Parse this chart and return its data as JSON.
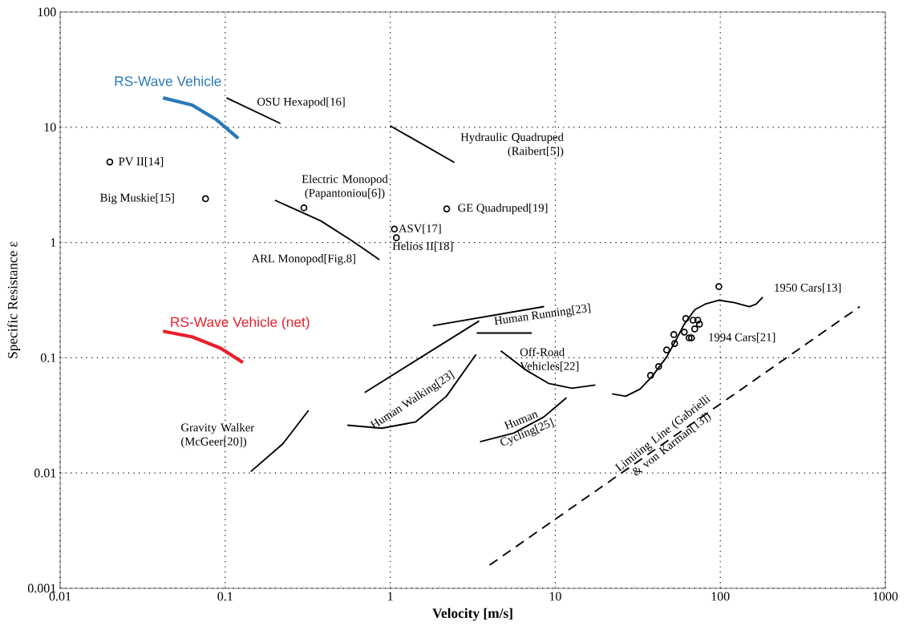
{
  "chart_data": {
    "type": "line",
    "xlabel": "Velocity [m/s]",
    "ylabel": "Specific Resistance ε",
    "log": "xy",
    "grid": true,
    "xlim": [
      0.01,
      1000
    ],
    "ylim": [
      0.001,
      100
    ],
    "xticks": [
      0.01,
      0.1,
      1,
      10,
      100,
      1000
    ],
    "yticks": [
      0.001,
      0.01,
      0.1,
      1,
      10,
      100
    ],
    "series": [
      {
        "name": "RS-Wave Vehicle",
        "color": "#2a7ab9",
        "marker": "none",
        "x": [
          0.042,
          0.063,
          0.088,
          0.12
        ],
        "values": [
          18,
          15.6,
          11.7,
          8.0
        ]
      },
      {
        "name": "RS-Wave Vehicle (net)",
        "color": "#e8202a",
        "marker": "none",
        "x": [
          0.042,
          0.063,
          0.094,
          0.128
        ],
        "values": [
          0.17,
          0.152,
          0.121,
          0.091
        ]
      },
      {
        "name": "OSU Hexapod[16]",
        "color": "#000000",
        "marker": "none",
        "x": [
          0.102,
          0.216
        ],
        "values": [
          18,
          10.8
        ]
      },
      {
        "name": "Hydraulic Quadruped (Raibert[5])",
        "color": "#000000",
        "marker": "none",
        "x": [
          1,
          2.45
        ],
        "values": [
          10.3,
          4.95
        ]
      },
      {
        "name": "ARL Monopod[Fig.8]",
        "color": "#000000",
        "marker": "none",
        "x": [
          0.2,
          0.38,
          0.59,
          0.86
        ],
        "values": [
          2.33,
          1.54,
          1.03,
          0.71
        ]
      },
      {
        "name": "Gravity Walker (McGeer[20])",
        "color": "#000000",
        "marker": "none",
        "x": [
          0.143,
          0.224,
          0.32
        ],
        "values": [
          0.0103,
          0.018,
          0.035
        ]
      },
      {
        "name": "Human Walking[23]",
        "color": "#000000",
        "marker": "none",
        "x": [
          0.7,
          3.46
        ],
        "values": [
          0.05,
          0.209
        ]
      },
      {
        "color": "#000000",
        "marker": "none",
        "x": [
          0.55,
          0.89,
          1.43,
          2.19,
          3.31
        ],
        "values": [
          0.026,
          0.0245,
          0.0278,
          0.0464,
          0.107
        ]
      },
      {
        "name": "Human Running[23]",
        "color": "#000000",
        "marker": "none",
        "x": [
          1.81,
          8.55
        ],
        "values": [
          0.19,
          0.278
        ]
      },
      {
        "color": "#000000",
        "marker": "none",
        "x": [
          3.34,
          7.2
        ],
        "values": [
          0.164,
          0.164
        ]
      },
      {
        "name": "Off-Road Vehicles[22]",
        "color": "#000000",
        "marker": "none",
        "x": [
          4.68,
          6.6,
          9.1,
          12.6,
          17.5
        ],
        "values": [
          0.115,
          0.0787,
          0.06,
          0.0545,
          0.058
        ]
      },
      {
        "name": "Human Cycling[25]",
        "color": "#000000",
        "marker": "none",
        "x": [
          3.5,
          5.6,
          8.5,
          11.7
        ],
        "values": [
          0.0187,
          0.0222,
          0.0306,
          0.045
        ]
      },
      {
        "name": "1950 Cars[13]",
        "color": "#000000",
        "marker": "none",
        "x": [
          22.1,
          26.7,
          32.7,
          38.7,
          47.3,
          53.5,
          60.5,
          70,
          80.9,
          97.8,
          122,
          150,
          165,
          181
        ],
        "values": [
          0.0487,
          0.0464,
          0.0536,
          0.0692,
          0.1016,
          0.14,
          0.196,
          0.261,
          0.292,
          0.316,
          0.301,
          0.278,
          0.292,
          0.337
        ]
      },
      {
        "name": "Limiting Line (Gabrielli & von Karman[13])",
        "color": "#000000",
        "marker": "none",
        "line_style": "dashed",
        "x": [
          4.0,
          700
        ],
        "values": [
          0.00159,
          0.278
        ]
      },
      {
        "name": "PV II[14]",
        "color": "#000000",
        "type": "scatter",
        "marker": "circle",
        "x": [
          0.02
        ],
        "values": [
          5.0
        ]
      },
      {
        "name": "Big Muskie[15]",
        "color": "#000000",
        "type": "scatter",
        "marker": "circle",
        "x": [
          0.076
        ],
        "values": [
          2.4
        ]
      },
      {
        "name": "Electric Monopod (Papantoniou[6])",
        "color": "#000000",
        "type": "scatter",
        "marker": "circle",
        "x": [
          0.3
        ],
        "values": [
          2.0
        ]
      },
      {
        "name": "GE Quadruped[19]",
        "color": "#000000",
        "type": "scatter",
        "marker": "circle",
        "x": [
          2.2
        ],
        "values": [
          1.96
        ]
      },
      {
        "name": "ASV[17]",
        "color": "#000000",
        "type": "scatter",
        "marker": "circle",
        "x": [
          1.06
        ],
        "values": [
          1.31
        ]
      },
      {
        "name": "Helios II[18]",
        "color": "#000000",
        "type": "scatter",
        "marker": "circle",
        "x": [
          1.09
        ],
        "values": [
          1.1
        ]
      },
      {
        "color": "#000000",
        "type": "scatter",
        "marker": "circle",
        "x": [
          98
        ],
        "values": [
          0.415
        ]
      },
      {
        "name": "1994 Cars[21]",
        "color": "#000000",
        "type": "scatter",
        "marker": "circle",
        "x": [
          37.8,
          42.3,
          47.3,
          52.3,
          52.9,
          60.5,
          64.7,
          66.9,
          61.8,
          68.4,
          70,
          74.8,
          73.1
        ],
        "values": [
          0.0703,
          0.084,
          0.117,
          0.159,
          0.133,
          0.167,
          0.149,
          0.149,
          0.219,
          0.212,
          0.178,
          0.196,
          0.212
        ]
      }
    ]
  }
}
